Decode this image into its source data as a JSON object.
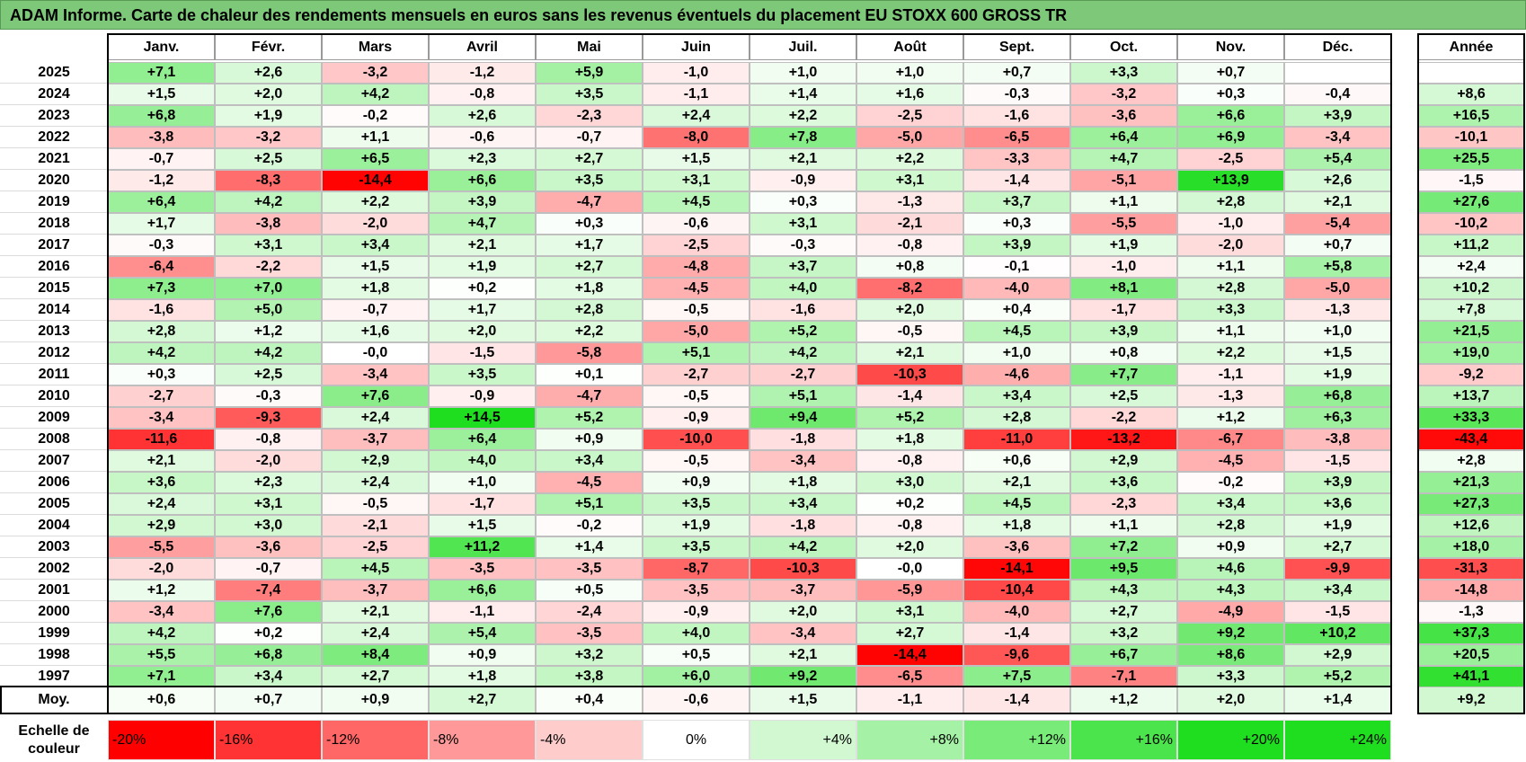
{
  "title": "ADAM Informe. Carte de chaleur des rendements mensuels en euros sans les revenus éventuels du placement EU STOXX 600 GROSS TR",
  "chart_data": {
    "type": "heatmap",
    "months": [
      "Janv.",
      "Févr.",
      "Mars",
      "Avril",
      "Mai",
      "Juin",
      "Juil.",
      "Août",
      "Sept.",
      "Oct.",
      "Nov.",
      "Déc."
    ],
    "annual_header": "Année",
    "rows": [
      {
        "year": "2025",
        "values": [
          "+7,1",
          "+2,6",
          "-3,2",
          "-1,2",
          "+5,9",
          "-1,0",
          "+1,0",
          "+1,0",
          "+0,7",
          "+3,3",
          "+0,7",
          ""
        ],
        "annual": ""
      },
      {
        "year": "2024",
        "values": [
          "+1,5",
          "+2,0",
          "+4,2",
          "-0,8",
          "+3,5",
          "-1,1",
          "+1,4",
          "+1,6",
          "-0,3",
          "-3,2",
          "+0,3",
          "-0,4"
        ],
        "annual": "+8,6"
      },
      {
        "year": "2023",
        "values": [
          "+6,8",
          "+1,9",
          "-0,2",
          "+2,6",
          "-2,3",
          "+2,4",
          "+2,2",
          "-2,5",
          "-1,6",
          "-3,6",
          "+6,6",
          "+3,9"
        ],
        "annual": "+16,5"
      },
      {
        "year": "2022",
        "values": [
          "-3,8",
          "-3,2",
          "+1,1",
          "-0,6",
          "-0,7",
          "-8,0",
          "+7,8",
          "-5,0",
          "-6,5",
          "+6,4",
          "+6,9",
          "-3,4"
        ],
        "annual": "-10,1"
      },
      {
        "year": "2021",
        "values": [
          "-0,7",
          "+2,5",
          "+6,5",
          "+2,3",
          "+2,7",
          "+1,5",
          "+2,1",
          "+2,2",
          "-3,3",
          "+4,7",
          "-2,5",
          "+5,4"
        ],
        "annual": "+25,5"
      },
      {
        "year": "2020",
        "values": [
          "-1,2",
          "-8,3",
          "-14,4",
          "+6,6",
          "+3,5",
          "+3,1",
          "-0,9",
          "+3,1",
          "-1,4",
          "-5,1",
          "+13,9",
          "+2,6"
        ],
        "annual": "-1,5"
      },
      {
        "year": "2019",
        "values": [
          "+6,4",
          "+4,2",
          "+2,2",
          "+3,9",
          "-4,7",
          "+4,5",
          "+0,3",
          "-1,3",
          "+3,7",
          "+1,1",
          "+2,8",
          "+2,1"
        ],
        "annual": "+27,6"
      },
      {
        "year": "2018",
        "values": [
          "+1,7",
          "-3,8",
          "-2,0",
          "+4,7",
          "+0,3",
          "-0,6",
          "+3,1",
          "-2,1",
          "+0,3",
          "-5,5",
          "-1,0",
          "-5,4"
        ],
        "annual": "-10,2"
      },
      {
        "year": "2017",
        "values": [
          "-0,3",
          "+3,1",
          "+3,4",
          "+2,1",
          "+1,7",
          "-2,5",
          "-0,3",
          "-0,8",
          "+3,9",
          "+1,9",
          "-2,0",
          "+0,7"
        ],
        "annual": "+11,2"
      },
      {
        "year": "2016",
        "values": [
          "-6,4",
          "-2,2",
          "+1,5",
          "+1,9",
          "+2,7",
          "-4,8",
          "+3,7",
          "+0,8",
          "-0,1",
          "-1,0",
          "+1,1",
          "+5,8"
        ],
        "annual": "+2,4"
      },
      {
        "year": "2015",
        "values": [
          "+7,3",
          "+7,0",
          "+1,8",
          "+0,2",
          "+1,8",
          "-4,5",
          "+4,0",
          "-8,2",
          "-4,0",
          "+8,1",
          "+2,8",
          "-5,0"
        ],
        "annual": "+10,2"
      },
      {
        "year": "2014",
        "values": [
          "-1,6",
          "+5,0",
          "-0,7",
          "+1,7",
          "+2,8",
          "-0,5",
          "-1,6",
          "+2,0",
          "+0,4",
          "-1,7",
          "+3,3",
          "-1,3"
        ],
        "annual": "+7,8"
      },
      {
        "year": "2013",
        "values": [
          "+2,8",
          "+1,2",
          "+1,6",
          "+2,0",
          "+2,2",
          "-5,0",
          "+5,2",
          "-0,5",
          "+4,5",
          "+3,9",
          "+1,1",
          "+1,0"
        ],
        "annual": "+21,5"
      },
      {
        "year": "2012",
        "values": [
          "+4,2",
          "+4,2",
          "-0,0",
          "-1,5",
          "-5,8",
          "+5,1",
          "+4,2",
          "+2,1",
          "+1,0",
          "+0,8",
          "+2,2",
          "+1,5"
        ],
        "annual": "+19,0"
      },
      {
        "year": "2011",
        "values": [
          "+0,3",
          "+2,5",
          "-3,4",
          "+3,5",
          "+0,1",
          "-2,7",
          "-2,7",
          "-10,3",
          "-4,6",
          "+7,7",
          "-1,1",
          "+1,9"
        ],
        "annual": "-9,2"
      },
      {
        "year": "2010",
        "values": [
          "-2,7",
          "-0,3",
          "+7,6",
          "-0,9",
          "-4,7",
          "-0,5",
          "+5,1",
          "-1,4",
          "+3,4",
          "+2,5",
          "-1,3",
          "+6,8"
        ],
        "annual": "+13,7"
      },
      {
        "year": "2009",
        "values": [
          "-3,4",
          "-9,3",
          "+2,4",
          "+14,5",
          "+5,2",
          "-0,9",
          "+9,4",
          "+5,2",
          "+2,8",
          "-2,2",
          "+1,2",
          "+6,3"
        ],
        "annual": "+33,3"
      },
      {
        "year": "2008",
        "values": [
          "-11,6",
          "-0,8",
          "-3,7",
          "+6,4",
          "+0,9",
          "-10,0",
          "-1,8",
          "+1,8",
          "-11,0",
          "-13,2",
          "-6,7",
          "-3,8"
        ],
        "annual": "-43,4"
      },
      {
        "year": "2007",
        "values": [
          "+2,1",
          "-2,0",
          "+2,9",
          "+4,0",
          "+3,4",
          "-0,5",
          "-3,4",
          "-0,8",
          "+0,6",
          "+2,9",
          "-4,5",
          "-1,5"
        ],
        "annual": "+2,8"
      },
      {
        "year": "2006",
        "values": [
          "+3,6",
          "+2,3",
          "+2,4",
          "+1,0",
          "-4,5",
          "+0,9",
          "+1,8",
          "+3,0",
          "+2,1",
          "+3,6",
          "-0,2",
          "+3,9"
        ],
        "annual": "+21,3"
      },
      {
        "year": "2005",
        "values": [
          "+2,4",
          "+3,1",
          "-0,5",
          "-1,7",
          "+5,1",
          "+3,5",
          "+3,4",
          "+0,2",
          "+4,5",
          "-2,3",
          "+3,4",
          "+3,6"
        ],
        "annual": "+27,3"
      },
      {
        "year": "2004",
        "values": [
          "+2,9",
          "+3,0",
          "-2,1",
          "+1,5",
          "-0,2",
          "+1,9",
          "-1,8",
          "-0,8",
          "+1,8",
          "+1,1",
          "+2,8",
          "+1,9"
        ],
        "annual": "+12,6"
      },
      {
        "year": "2003",
        "values": [
          "-5,5",
          "-3,6",
          "-2,5",
          "+11,2",
          "+1,4",
          "+3,5",
          "+4,2",
          "+2,0",
          "-3,6",
          "+7,2",
          "+0,9",
          "+2,7"
        ],
        "annual": "+18,0"
      },
      {
        "year": "2002",
        "values": [
          "-2,0",
          "-0,7",
          "+4,5",
          "-3,5",
          "-3,5",
          "-8,7",
          "-10,3",
          "-0,0",
          "-14,1",
          "+9,5",
          "+4,6",
          "-9,9"
        ],
        "annual": "-31,3"
      },
      {
        "year": "2001",
        "values": [
          "+1,2",
          "-7,4",
          "-3,7",
          "+6,6",
          "+0,5",
          "-3,5",
          "-3,7",
          "-5,9",
          "-10,4",
          "+4,3",
          "+4,3",
          "+3,4"
        ],
        "annual": "-14,8"
      },
      {
        "year": "2000",
        "values": [
          "-3,4",
          "+7,6",
          "+2,1",
          "-1,1",
          "-2,4",
          "-0,9",
          "+2,0",
          "+3,1",
          "-4,0",
          "+2,7",
          "-4,9",
          "-1,5"
        ],
        "annual": "-1,3"
      },
      {
        "year": "1999",
        "values": [
          "+4,2",
          "+0,2",
          "+2,4",
          "+5,4",
          "-3,5",
          "+4,0",
          "-3,4",
          "+2,7",
          "-1,4",
          "+3,2",
          "+9,2",
          "+10,2"
        ],
        "annual": "+37,3"
      },
      {
        "year": "1998",
        "values": [
          "+5,5",
          "+6,8",
          "+8,4",
          "+0,9",
          "+3,2",
          "+0,5",
          "+2,1",
          "-14,4",
          "-9,6",
          "+6,7",
          "+8,6",
          "+2,9"
        ],
        "annual": "+20,5"
      },
      {
        "year": "1997",
        "values": [
          "+7,1",
          "+3,4",
          "+2,7",
          "+1,8",
          "+3,8",
          "+6,0",
          "+9,2",
          "-6,5",
          "+7,5",
          "-7,1",
          "+3,3",
          "+5,2"
        ],
        "annual": "+41,1"
      }
    ],
    "average": {
      "label": "Moy.",
      "values": [
        "+0,6",
        "+0,7",
        "+0,9",
        "+2,7",
        "+0,4",
        "-0,6",
        "+1,5",
        "-1,1",
        "-1,4",
        "+1,2",
        "+2,0",
        "+1,4"
      ],
      "annual": "+9,2"
    },
    "scale": {
      "label": "Echelle de couleur",
      "steps": [
        "-20%",
        "-16%",
        "-12%",
        "-8%",
        "-4%",
        "0%",
        "+4%",
        "+8%",
        "+12%",
        "+16%",
        "+20%",
        "+24%"
      ]
    },
    "colors": {
      "negative_max": "#ff0000",
      "neutral": "#ffffff",
      "positive_max": "#1fdd1f",
      "title_bg": "#7ec87a"
    }
  }
}
